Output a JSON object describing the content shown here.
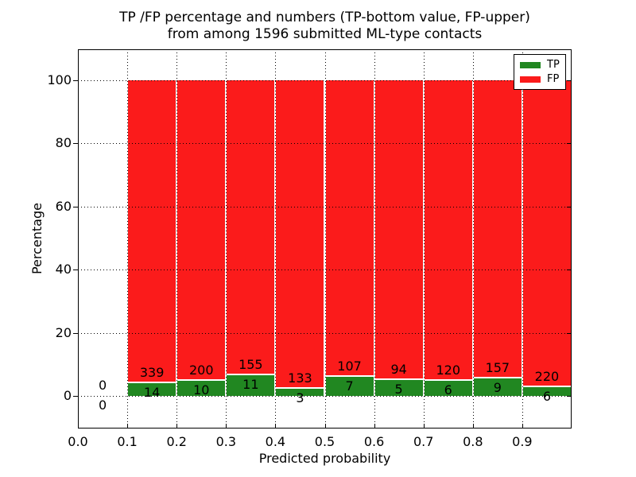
{
  "figure": {
    "title_line1": "TP /FP percentage and numbers (TP-bottom value, FP-upper)",
    "title_line2": "from among 1596 submitted ML-type contacts"
  },
  "chart_data": {
    "type": "bar",
    "stacked": true,
    "title": "TP /FP percentage and numbers (TP-bottom value, FP-upper) from among 1596 submitted ML-type contacts",
    "xlabel": "Predicted probability",
    "ylabel": "Percentage",
    "total_contacts": 1596,
    "bins": [
      {
        "range": [
          0.0,
          0.1
        ],
        "tp": 0,
        "fp": 0
      },
      {
        "range": [
          0.1,
          0.2
        ],
        "tp": 14,
        "fp": 339
      },
      {
        "range": [
          0.2,
          0.3
        ],
        "tp": 10,
        "fp": 200
      },
      {
        "range": [
          0.3,
          0.4
        ],
        "tp": 11,
        "fp": 155
      },
      {
        "range": [
          0.4,
          0.5
        ],
        "tp": 3,
        "fp": 133
      },
      {
        "range": [
          0.5,
          0.6
        ],
        "tp": 7,
        "fp": 107
      },
      {
        "range": [
          0.6,
          0.7
        ],
        "tp": 5,
        "fp": 94
      },
      {
        "range": [
          0.7,
          0.8
        ],
        "tp": 6,
        "fp": 120
      },
      {
        "range": [
          0.8,
          0.9
        ],
        "tp": 9,
        "fp": 157
      },
      {
        "range": [
          0.9,
          1.0
        ],
        "tp": 6,
        "fp": 220
      }
    ],
    "tp_percent_of_bin": [
      0,
      3.97,
      4.76,
      6.63,
      2.21,
      6.14,
      5.05,
      4.76,
      5.42,
      2.65
    ],
    "fp_percent_of_bin": [
      0,
      96.03,
      95.24,
      93.37,
      97.79,
      93.86,
      94.95,
      95.24,
      94.58,
      97.35
    ],
    "x_ticks": [
      "0.0",
      "0.1",
      "0.2",
      "0.3",
      "0.4",
      "0.5",
      "0.6",
      "0.7",
      "0.8",
      "0.9"
    ],
    "y_ticks": [
      0,
      20,
      40,
      60,
      80,
      100
    ],
    "xlim": [
      0.0,
      1.0
    ],
    "ylim": [
      -10.3,
      109.8
    ],
    "grid": "dotted",
    "colors": {
      "tp": "#218721",
      "fp": "#fb1b1b"
    },
    "legend": {
      "position": "upper right",
      "entries": [
        {
          "label": "TP",
          "color": "#218721"
        },
        {
          "label": "FP",
          "color": "#fb1b1b"
        }
      ]
    }
  }
}
